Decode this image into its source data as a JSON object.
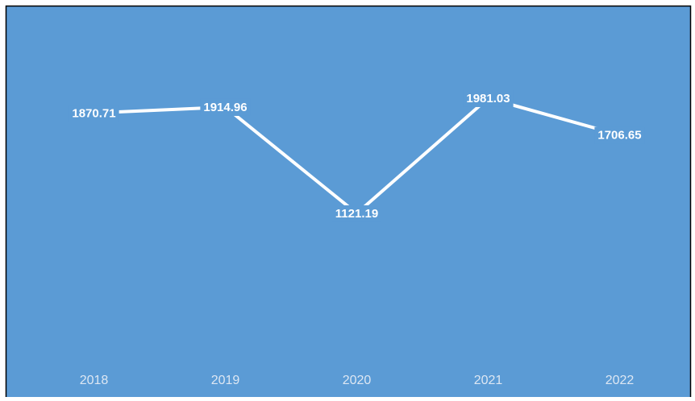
{
  "chart_data": {
    "type": "line",
    "categories": [
      "2018",
      "2019",
      "2020",
      "2021",
      "2022"
    ],
    "values": [
      1870.71,
      1914.96,
      1121.19,
      1981.03,
      1706.65
    ],
    "color": "#ffffff",
    "background": "#5b9bd5"
  }
}
